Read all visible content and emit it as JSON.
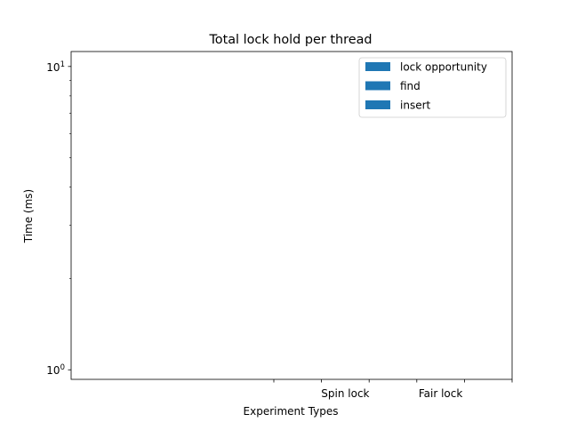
{
  "chart_data": {
    "type": "bar",
    "title": "Total lock hold per thread",
    "xlabel": "Experiment Types",
    "ylabel": "Time (ms)",
    "yscale": "log",
    "ylim": [
      0.93,
      11.2
    ],
    "y_ticks": [
      {
        "value": 1,
        "base": "10",
        "exp": "0"
      },
      {
        "value": 10,
        "base": "10",
        "exp": "1"
      }
    ],
    "x_tick_labels": [
      "",
      "Spin lock",
      "",
      "Fair lock",
      "",
      ""
    ],
    "bar_color": "#1f77b4",
    "legend": {
      "position": "top-right",
      "entries": [
        "lock opportunity",
        "find",
        "insert"
      ]
    },
    "series": [
      {
        "name": "lock opportunity",
        "values": []
      },
      {
        "name": "find",
        "values": []
      },
      {
        "name": "insert",
        "values": []
      }
    ],
    "grid": false
  }
}
